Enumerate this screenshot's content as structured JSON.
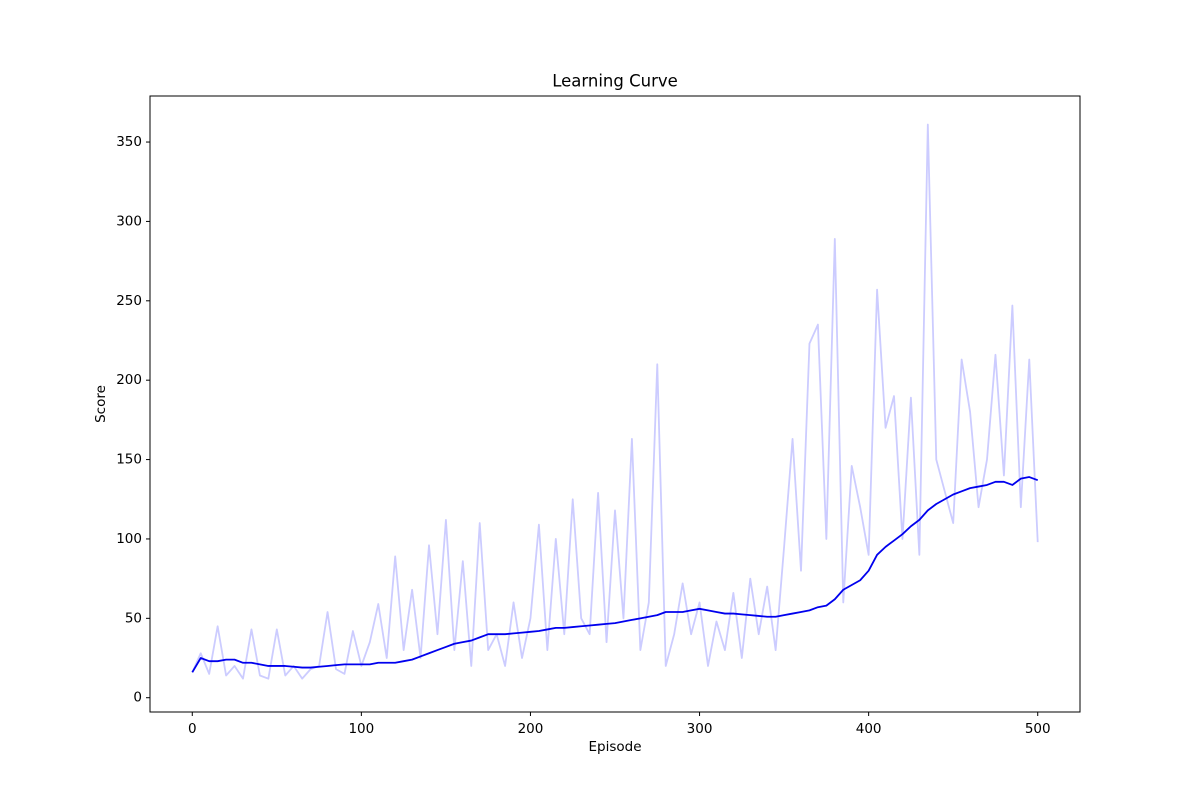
{
  "chart_data": {
    "type": "line",
    "title": "Learning Curve",
    "x_label": "Episode",
    "y_label": "Score",
    "x": [
      0,
      5,
      10,
      15,
      20,
      25,
      30,
      35,
      40,
      45,
      50,
      55,
      60,
      65,
      70,
      75,
      80,
      85,
      90,
      95,
      100,
      105,
      110,
      115,
      120,
      125,
      130,
      135,
      140,
      145,
      150,
      155,
      160,
      165,
      170,
      175,
      180,
      185,
      190,
      195,
      200,
      205,
      210,
      215,
      220,
      225,
      230,
      235,
      240,
      245,
      250,
      255,
      260,
      265,
      270,
      275,
      280,
      285,
      290,
      295,
      300,
      305,
      310,
      315,
      320,
      325,
      330,
      335,
      340,
      345,
      350,
      355,
      360,
      365,
      370,
      375,
      380,
      385,
      390,
      395,
      400,
      405,
      410,
      415,
      420,
      425,
      430,
      435,
      440,
      445,
      450,
      455,
      460,
      465,
      470,
      475,
      480,
      485,
      490,
      495,
      500
    ],
    "series": [
      {
        "color": "#ccccff",
        "values": [
          16,
          28,
          15,
          45,
          14,
          20,
          12,
          43,
          14,
          12,
          43,
          14,
          20,
          12,
          18,
          20,
          54,
          18,
          15,
          42,
          20,
          35,
          59,
          25,
          89,
          30,
          68,
          25,
          96,
          40,
          112,
          30,
          86,
          20,
          110,
          30,
          40,
          20,
          60,
          25,
          50,
          109,
          30,
          100,
          40,
          125,
          50,
          40,
          129,
          35,
          118,
          50,
          163,
          30,
          60,
          210,
          20,
          40,
          72,
          40,
          60,
          20,
          48,
          30,
          66,
          25,
          75,
          40,
          70,
          30,
          95,
          163,
          80,
          223,
          235,
          100,
          289,
          60,
          146,
          120,
          90,
          257,
          170,
          190,
          100,
          189,
          90,
          361,
          150,
          130,
          110,
          213,
          180,
          120,
          150,
          216,
          140,
          247,
          120,
          213,
          98
        ]
      },
      {
        "color": "#0000ee",
        "values": [
          16,
          25,
          23,
          23,
          24,
          24,
          22,
          22,
          21,
          20,
          20,
          20,
          19.5,
          19,
          19,
          19.5,
          20,
          20.5,
          21,
          21,
          21,
          21,
          22,
          22,
          22,
          23,
          24,
          26,
          28,
          30,
          32,
          34,
          35,
          36,
          38,
          40,
          40,
          40,
          40.5,
          41,
          41.5,
          42,
          43,
          44,
          44,
          44.5,
          45,
          45.5,
          46,
          46.5,
          47,
          48,
          49,
          50,
          51,
          52,
          54,
          54,
          54,
          55,
          56,
          55,
          54,
          53,
          53,
          52.5,
          52,
          51.5,
          51,
          51,
          52,
          53,
          54,
          55,
          57,
          58,
          62,
          68,
          71,
          74,
          80,
          90,
          95,
          99,
          103,
          108,
          112,
          118,
          122,
          125,
          128,
          130,
          132,
          133,
          134,
          136,
          136,
          134,
          138,
          139,
          137
        ]
      }
    ],
    "xlim": [
      -25,
      525
    ],
    "ylim": [
      -9,
      379
    ],
    "xticks": [
      0,
      100,
      200,
      300,
      400,
      500
    ],
    "yticks": [
      0,
      50,
      100,
      150,
      200,
      250,
      300,
      350
    ]
  }
}
